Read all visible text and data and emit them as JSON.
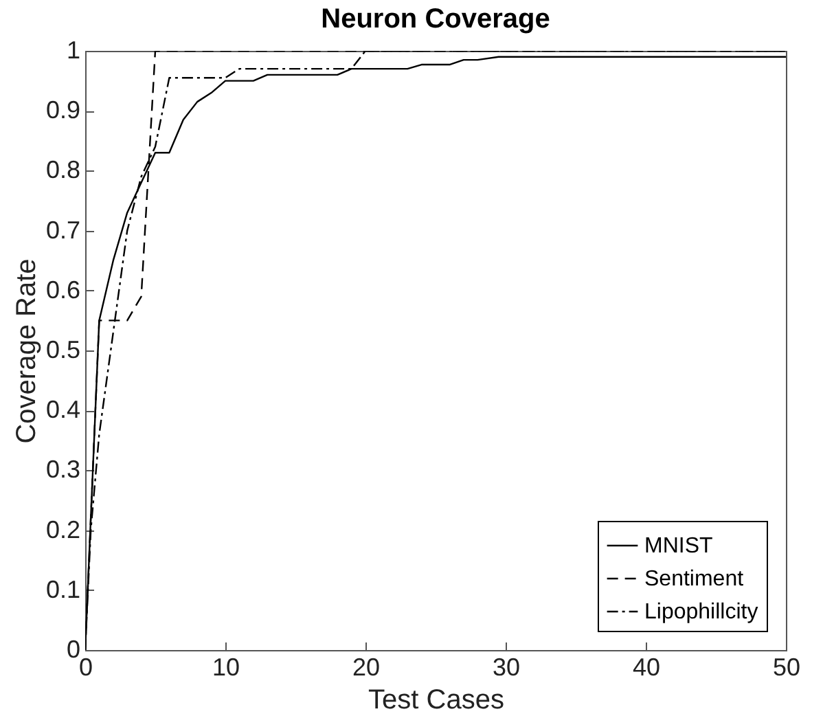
{
  "chart_data": {
    "type": "line",
    "title": "Neuron Coverage",
    "xlabel": "Test Cases",
    "ylabel": "Coverage Rate",
    "xlim": [
      0,
      50
    ],
    "xticks": [
      0,
      10,
      20,
      30,
      40,
      50
    ],
    "ylim": [
      0,
      1
    ],
    "yticks": [
      0,
      0.1,
      0.2,
      0.3,
      0.4,
      0.5,
      0.6,
      0.7,
      0.8,
      0.9,
      1
    ],
    "legend": "bottom right",
    "grid": false,
    "marker": "none",
    "series": [
      {
        "name": "MNIST",
        "color": "#000000",
        "line_style": "solid",
        "x": [
          0,
          1,
          2,
          3,
          4,
          5,
          6,
          7,
          8,
          9,
          10,
          12,
          13,
          18,
          19,
          23,
          24,
          26,
          27,
          28,
          29.5,
          50
        ],
        "values": [
          0,
          0.55,
          0.65,
          0.73,
          0.78,
          0.83,
          0.83,
          0.885,
          0.915,
          0.93,
          0.95,
          0.95,
          0.96,
          0.96,
          0.97,
          0.97,
          0.977,
          0.977,
          0.985,
          0.985,
          0.99,
          0.99
        ]
      },
      {
        "name": "Sentiment",
        "color": "#000000",
        "line_style": "dashed",
        "x": [
          0,
          1,
          3,
          4,
          5,
          50
        ],
        "values": [
          0,
          0.55,
          0.55,
          0.59,
          1,
          1
        ]
      },
      {
        "name": "Lipophillcity",
        "color": "#000000",
        "line_style": "dashdot",
        "x": [
          0,
          0.4,
          1,
          2,
          3,
          4,
          5,
          6,
          10,
          11,
          19,
          20,
          50
        ],
        "values": [
          0,
          0.2,
          0.36,
          0.53,
          0.7,
          0.79,
          0.84,
          0.955,
          0.955,
          0.97,
          0.97,
          1,
          1
        ]
      }
    ]
  }
}
